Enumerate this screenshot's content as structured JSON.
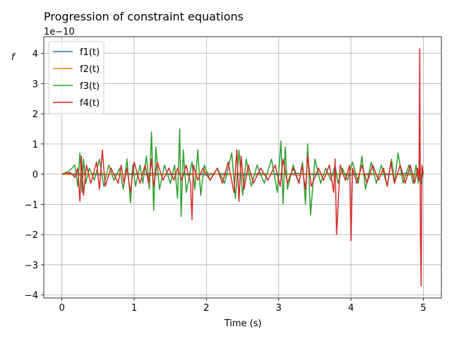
{
  "chart_data": {
    "type": "line",
    "title": "Progression of constraint equations",
    "xlabel": "Time (s)",
    "ylabel": "f",
    "y_offset_label": "1e−10",
    "y_scale": 1e-10,
    "xlim": [
      -0.25,
      5.25
    ],
    "ylim": [
      -4.1e-10,
      4.55e-10
    ],
    "x_ticks": [
      0,
      1,
      2,
      3,
      4,
      5
    ],
    "x_tick_labels": [
      "0",
      "1",
      "2",
      "3",
      "4",
      "5"
    ],
    "y_ticks": [
      -4e-10,
      -3e-10,
      -2e-10,
      -1e-10,
      0,
      1e-10,
      2e-10,
      3e-10,
      4e-10
    ],
    "y_tick_labels": [
      "−4",
      "−3",
      "−2",
      "−1",
      "0",
      "1",
      "2",
      "3",
      "4"
    ],
    "grid": true,
    "legend_position": "top-left",
    "series": [
      {
        "name": "f1(t)",
        "color": "#1f77b4",
        "x": [
          0,
          0.25,
          0.5,
          0.75,
          1.0,
          1.25,
          1.5,
          1.75,
          2.0,
          2.25,
          2.5,
          2.75,
          3.0,
          3.25,
          3.5,
          3.75,
          4.0,
          4.25,
          4.5,
          4.75,
          5.0
        ],
        "y": [
          0,
          2e-12,
          -2e-12,
          1e-12,
          -2e-12,
          3e-12,
          -2e-12,
          2e-12,
          -3e-12,
          2e-12,
          -3e-12,
          2e-12,
          -2e-12,
          3e-12,
          -2e-12,
          2e-12,
          -3e-12,
          2e-12,
          -2e-12,
          3e-12,
          -2e-12
        ]
      },
      {
        "name": "f2(t)",
        "color": "#ff7f0e",
        "x": [
          0,
          0.25,
          0.5,
          0.75,
          1.0,
          1.25,
          1.5,
          1.75,
          2.0,
          2.25,
          2.5,
          2.75,
          3.0,
          3.25,
          3.5,
          3.75,
          4.0,
          4.25,
          4.5,
          4.75,
          5.0
        ],
        "y": [
          0,
          -3e-12,
          3e-12,
          -2e-12,
          3e-12,
          -4e-12,
          3e-12,
          -3e-12,
          4e-12,
          -3e-12,
          4e-12,
          -3e-12,
          3e-12,
          -4e-12,
          3e-12,
          -3e-12,
          4e-12,
          -3e-12,
          3e-12,
          -4e-12,
          3e-12
        ]
      },
      {
        "name": "f3(t)",
        "color": "#2ca02c",
        "x": [
          0.0,
          0.1,
          0.18,
          0.22,
          0.25,
          0.28,
          0.3,
          0.33,
          0.38,
          0.45,
          0.52,
          0.58,
          0.65,
          0.72,
          0.8,
          0.85,
          0.9,
          0.95,
          0.98,
          1.02,
          1.08,
          1.12,
          1.17,
          1.21,
          1.24,
          1.27,
          1.3,
          1.35,
          1.42,
          1.5,
          1.56,
          1.6,
          1.63,
          1.65,
          1.68,
          1.72,
          1.8,
          1.84,
          1.88,
          1.92,
          1.97,
          2.05,
          2.15,
          2.25,
          2.35,
          2.4,
          2.45,
          2.5,
          2.55,
          2.62,
          2.7,
          2.8,
          2.9,
          2.98,
          3.03,
          3.06,
          3.09,
          3.12,
          3.2,
          3.28,
          3.33,
          3.37,
          3.4,
          3.44,
          3.5,
          3.58,
          3.65,
          3.72,
          3.78,
          3.82,
          3.88,
          3.95,
          4.02,
          4.1,
          4.15,
          4.2,
          4.28,
          4.35,
          4.42,
          4.5,
          4.56,
          4.6,
          4.65,
          4.72,
          4.8,
          4.86,
          4.9,
          4.93,
          4.95,
          4.97,
          5.0
        ],
        "y": [
          0,
          1e-11,
          3e-11,
          -4e-11,
          7e-11,
          -6e-11,
          5e-11,
          -3e-11,
          2e-11,
          -2e-11,
          5e-11,
          -4e-11,
          3e-11,
          -2e-11,
          2e-11,
          -5e-11,
          5e-11,
          -9.5e-11,
          3e-11,
          -4e-11,
          3e-11,
          -3e-11,
          6e-11,
          -5e-11,
          1.4e-10,
          -1.2e-10,
          9e-11,
          -5e-11,
          3e-11,
          -3e-11,
          3e-11,
          -8e-11,
          1.5e-10,
          -1.4e-10,
          8e-11,
          -6e-11,
          4e-11,
          -5e-11,
          8e-11,
          -7e-11,
          3e-11,
          -2e-11,
          2e-11,
          -3e-11,
          7e-11,
          -8e-11,
          8e-11,
          -7e-11,
          5e-11,
          -4e-11,
          3e-11,
          -3e-11,
          5e-11,
          -6e-11,
          1.1e-10,
          -1e-10,
          9e-11,
          -5e-11,
          3e-11,
          -3e-11,
          4e-11,
          -1e-10,
          1e-10,
          -1.35e-10,
          5e-11,
          -3e-11,
          2e-11,
          -2e-11,
          3e-11,
          -3e-11,
          2e-11,
          -2e-11,
          4e-11,
          -3e-11,
          6e-11,
          -5e-11,
          4e-11,
          -3e-11,
          3e-11,
          -4e-11,
          5e-11,
          -3e-11,
          7e-11,
          -3e-11,
          3e-11,
          -3e-11,
          3e-11,
          -3e-11,
          4e-11,
          -3e-11,
          1e-11
        ]
      },
      {
        "name": "f4(t)",
        "color": "#d62728",
        "x": [
          0.0,
          0.12,
          0.18,
          0.22,
          0.25,
          0.27,
          0.3,
          0.34,
          0.4,
          0.48,
          0.52,
          0.56,
          0.6,
          0.68,
          0.78,
          0.82,
          0.86,
          0.9,
          0.95,
          1.0,
          1.08,
          1.15,
          1.2,
          1.24,
          1.27,
          1.32,
          1.4,
          1.48,
          1.55,
          1.6,
          1.66,
          1.72,
          1.78,
          1.8,
          1.82,
          1.88,
          1.95,
          2.05,
          2.15,
          2.22,
          2.3,
          2.38,
          2.42,
          2.45,
          2.48,
          2.52,
          2.58,
          2.65,
          2.75,
          2.85,
          2.95,
          3.02,
          3.06,
          3.12,
          3.2,
          3.28,
          3.32,
          3.37,
          3.4,
          3.45,
          3.55,
          3.62,
          3.7,
          3.76,
          3.78,
          3.8,
          3.85,
          3.92,
          3.98,
          4.0,
          4.02,
          4.08,
          4.15,
          4.22,
          4.3,
          4.38,
          4.45,
          4.5,
          4.55,
          4.6,
          4.68,
          4.75,
          4.82,
          4.88,
          4.92,
          4.94,
          4.95,
          4.96,
          4.97,
          4.98,
          5.0
        ],
        "y": [
          0,
          5e-12,
          -1e-11,
          2e-11,
          -9e-11,
          6e-11,
          -7e-11,
          3e-11,
          -3e-11,
          4e-11,
          -5e-11,
          8e-11,
          -4e-11,
          2e-11,
          -3e-11,
          3e-11,
          -3e-11,
          2e-11,
          -6e-11,
          4e-11,
          -3e-11,
          3e-11,
          -3e-11,
          5e-11,
          -4e-11,
          4e-11,
          -2e-11,
          2e-11,
          -2e-11,
          2e-11,
          -2e-11,
          3e-11,
          -3e-11,
          -1.5e-10,
          3e-11,
          -2e-11,
          2e-11,
          -2e-11,
          2e-11,
          -3e-11,
          4e-11,
          -6e-11,
          8e-11,
          -9e-11,
          6e-11,
          -5e-11,
          3e-11,
          -3e-11,
          2e-11,
          -2e-11,
          3e-11,
          -4e-11,
          5e-11,
          -3e-11,
          2e-11,
          -3e-11,
          3e-11,
          -5e-11,
          6e-11,
          -4e-11,
          2e-11,
          -2e-11,
          3e-11,
          -6e-11,
          5e-11,
          -2e-10,
          3e-11,
          -2e-11,
          3e-11,
          -2.2e-10,
          2e-11,
          -3e-11,
          3e-11,
          -3e-11,
          3e-11,
          -2e-11,
          2e-11,
          -4e-11,
          4e-11,
          -3e-11,
          3e-11,
          -3e-11,
          3e-11,
          -3e-11,
          2e-11,
          -2e-11,
          4.15e-10,
          -2.1e-10,
          -3.7e-10,
          3e-11,
          0
        ]
      }
    ]
  }
}
